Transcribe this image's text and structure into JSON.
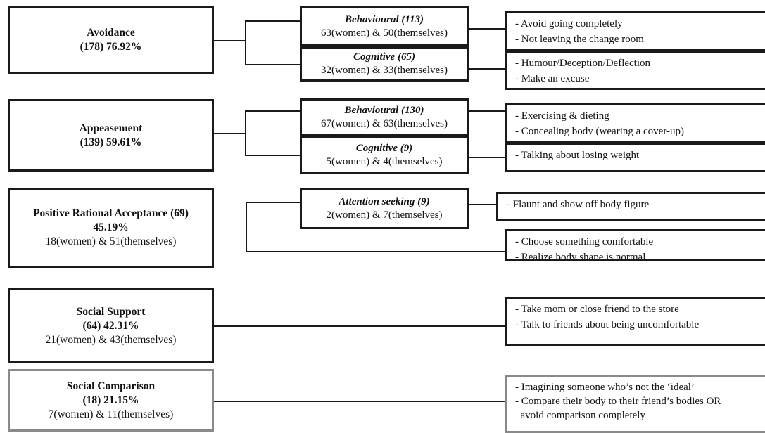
{
  "categories": [
    {
      "title": "Avoidance",
      "stat": "(178) 76.92%"
    },
    {
      "title": "Appeasement",
      "stat": "(139) 59.61%"
    },
    {
      "title": "Positive Rational Acceptance (69)",
      "stat": "45.19%",
      "detail": "18(women) & 51(themselves)"
    },
    {
      "title": "Social Support",
      "stat": "(64) 42.31%",
      "detail": "21(women) & 43(themselves)"
    },
    {
      "title": "Social Comparison",
      "stat": "(18) 21.15%",
      "detail": "7(women) & 11(themselves)"
    }
  ],
  "subcategories": [
    {
      "title": "Behavioural (113)",
      "detail": "63(women) & 50(themselves)"
    },
    {
      "title": "Cognitive (65)",
      "detail": "32(women) & 33(themselves)"
    },
    {
      "title": "Behavioural (130)",
      "detail": "67(women) & 63(themselves)"
    },
    {
      "title": "Cognitive (9)",
      "detail": "5(women) & 4(themselves)"
    },
    {
      "title": "Attention seeking (9)",
      "detail": "2(women) & 7(themselves)"
    }
  ],
  "responses": [
    {
      "items": [
        "- Avoid going completely",
        "- Not leaving the change room"
      ]
    },
    {
      "items": [
        "- Humour/Deception/Deflection",
        "- Make an excuse"
      ]
    },
    {
      "items": [
        "- Exercising & dieting",
        "- Concealing body (wearing a cover-up)"
      ]
    },
    {
      "items": [
        "- Talking about losing weight"
      ]
    },
    {
      "items": [
        "- Flaunt and show off body figure"
      ]
    },
    {
      "items": [
        "- Choose something comfortable",
        "- Realize body shape is normal"
      ]
    },
    {
      "items": [
        "- Take mom or close friend to the store",
        "- Talk to friends about being uncomfortable"
      ]
    },
    {
      "items": [
        "- Imagining someone who’s not the ‘ideal’",
        "- Compare their body to their friend’s bodies OR",
        "  avoid comparison completely"
      ]
    }
  ]
}
